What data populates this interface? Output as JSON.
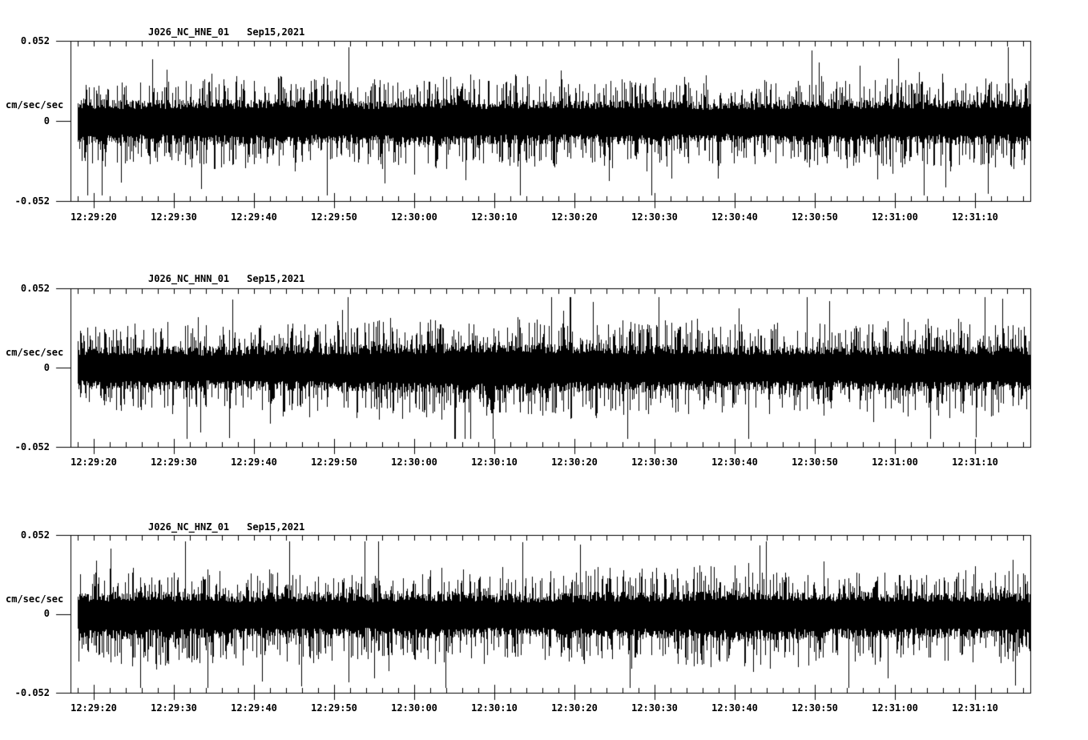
{
  "app": {
    "name": "seismogram-display",
    "background": "#ffffff",
    "trace_color": "#000000"
  },
  "chart_data": [
    {
      "type": "line",
      "subtype": "seismogram-trace",
      "station": "J026_NC_HNE_01",
      "date": "Sep15,2021",
      "ylabel": "cm/sec/sec",
      "ylim": [
        -0.052,
        0.052
      ],
      "yticks": [
        {
          "label": "0.052",
          "value": 0.052
        },
        {
          "label": "0",
          "value": 0
        },
        {
          "label": "-0.052",
          "value": -0.052
        }
      ],
      "xticks": [
        "12:29:20",
        "12:29:30",
        "12:29:40",
        "12:29:50",
        "12:30:00",
        "12:30:10",
        "12:30:20",
        "12:30:30",
        "12:30:40",
        "12:30:50",
        "12:31:00",
        "12:31:10"
      ],
      "xtick_major_interval_seconds": 10,
      "xtick_minor_interval_seconds": 2,
      "series_description": "continuous ground-acceleration noise, solid band ~±0.013 with spikes to ~±0.047",
      "noise": {
        "seed": 11,
        "base_amp": 0.0125,
        "peak_amp": 0.048,
        "down_bias": 1.08,
        "envelope": [
          1.05,
          1.0,
          0.98,
          1.05,
          1.0,
          1.08,
          1.0,
          0.95,
          1.1,
          1.05,
          1.0,
          1.02,
          0.96,
          1.0,
          1.05,
          0.92,
          0.9,
          1.0,
          1.04,
          1.0,
          0.97,
          1.03,
          1.0,
          1.02
        ]
      }
    },
    {
      "type": "line",
      "subtype": "seismogram-trace",
      "station": "J026_NC_HNN_01",
      "date": "Sep15,2021",
      "ylabel": "cm/sec/sec",
      "ylim": [
        -0.052,
        0.052
      ],
      "yticks": [
        {
          "label": "0.052",
          "value": 0.052
        },
        {
          "label": "0",
          "value": 0
        },
        {
          "label": "-0.052",
          "value": -0.052
        }
      ],
      "xticks": [
        "12:29:20",
        "12:29:30",
        "12:29:40",
        "12:29:50",
        "12:30:00",
        "12:30:10",
        "12:30:20",
        "12:30:30",
        "12:30:40",
        "12:30:50",
        "12:31:00",
        "12:31:10"
      ],
      "xtick_major_interval_seconds": 10,
      "xtick_minor_interval_seconds": 2,
      "series_description": "continuous ground-acceleration noise, slightly larger amplitude bulge near 12:30:10-12:30:20, spikes to ~±0.046",
      "noise": {
        "seed": 22,
        "base_amp": 0.013,
        "peak_amp": 0.046,
        "down_bias": 1.0,
        "envelope": [
          0.95,
          1.0,
          1.02,
          0.98,
          1.0,
          1.05,
          1.02,
          1.08,
          1.12,
          1.18,
          1.22,
          1.18,
          1.12,
          1.08,
          1.1,
          1.05,
          1.0,
          1.02,
          0.98,
          1.0,
          1.06,
          1.1,
          1.04,
          1.0
        ]
      }
    },
    {
      "type": "line",
      "subtype": "seismogram-trace",
      "station": "J026_NC_HNZ_01",
      "date": "Sep15,2021",
      "ylabel": "cm/sec/sec",
      "ylim": [
        -0.052,
        0.052
      ],
      "yticks": [
        {
          "label": "0.052",
          "value": 0.052
        },
        {
          "label": "0",
          "value": 0
        },
        {
          "label": "-0.052",
          "value": -0.052
        }
      ],
      "xticks": [
        "12:29:20",
        "12:29:30",
        "12:29:40",
        "12:29:50",
        "12:30:00",
        "12:30:10",
        "12:30:20",
        "12:30:30",
        "12:30:40",
        "12:30:50",
        "12:31:00",
        "12:31:10"
      ],
      "xtick_major_interval_seconds": 10,
      "xtick_minor_interval_seconds": 2,
      "series_description": "continuous ground-acceleration noise, tall spike to ~0.047 near 12:30:40, down spikes to ~-0.045",
      "noise": {
        "seed": 33,
        "base_amp": 0.013,
        "peak_amp": 0.048,
        "down_bias": 1.07,
        "envelope": [
          1.0,
          1.04,
          1.08,
          1.02,
          0.98,
          1.0,
          1.05,
          0.96,
          1.0,
          1.04,
          0.98,
          0.95,
          1.0,
          1.05,
          1.02,
          1.1,
          1.18,
          1.08,
          1.0,
          1.04,
          0.96,
          1.0,
          1.05,
          1.0
        ]
      }
    }
  ]
}
